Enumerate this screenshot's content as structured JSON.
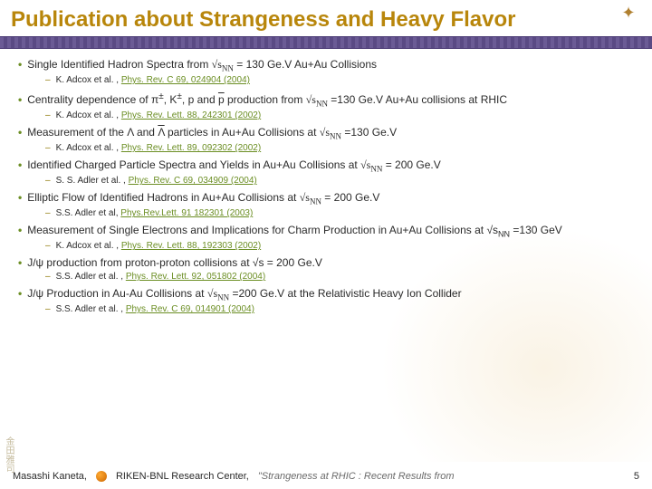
{
  "title": "Publication about Strangeness and Heavy Flavor",
  "pubs": [
    {
      "title_html": "Single Identified Hadron Spectra from <span class='sqrt'>√s<span class='sub'>NN</span></span> = 130 Ge.V Au+Au Collisions",
      "author": "K. Adcox et al. , ",
      "ref": "Phys. Rev. C 69, 024904 (2004)"
    },
    {
      "title_html": "Centrality dependence of π<sup>±</sup>, K<sup>±</sup>, p and <span class='overline'>p</span> production from <span class='sqrt'>√s<span class='sub'>NN</span></span> =130 Ge.V Au+Au collisions at RHIC",
      "author": "K. Adcox et al. , ",
      "ref": "Phys. Rev. Lett. 88, 242301 (2002)"
    },
    {
      "title_html": "Measurement of the Λ and <span class='overline'>Λ</span> particles in Au+Au Collisions at <span class='sqrt'>√s<span class='sub'>NN</span></span> =130 Ge.V",
      "author": "K. Adcox et al. , ",
      "ref": "Phys. Rev. Lett. 89, 092302 (2002)"
    },
    {
      "title_html": "Identified Charged Particle Spectra and Yields in Au+Au Collisions at <span class='sqrt'>√s<span class='sub'>NN</span></span> = 200 Ge.V",
      "author": "S. S. Adler et al. , ",
      "ref": "Phys. Rev. C 69, 034909 (2004)"
    },
    {
      "title_html": "Elliptic Flow of Identified Hadrons in Au+Au Collisions at <span class='sqrt'>√s<span class='sub'>NN</span></span> = 200 Ge.V",
      "author": "S.S. Adler et al, ",
      "ref": "Phys.Rev.Lett. 91 182301 (2003)"
    },
    {
      "title_html": "Measurement of Single Electrons and Implications for Charm Production in Au+Au Collisions at √s<span class='sub'>NN</span> =130 GeV",
      "author": "K. Adcox et al. , ",
      "ref": "Phys. Rev. Lett. 88, 192303 (2002)"
    },
    {
      "title_html": "J/ψ production from proton-proton collisions at √s = 200 Ge.V",
      "author": "S.S. Adler et al. , ",
      "ref": "Phys. Rev. Lett. 92, 051802 (2004)"
    },
    {
      "title_html": "J/ψ Production in Au-Au Collisions at <span class='sqrt'>√s<span class='sub'>NN</span></span> =200 Ge.V at the Relativistic Heavy Ion Collider",
      "author": "S.S. Adler et al. , ",
      "ref": "Phys. Rev. C 69, 014901 (2004)"
    }
  ],
  "footer": {
    "name": "Masashi Kaneta,",
    "inst": "RIKEN-BNL Research Center,",
    "talk": "\"Strangeness at RHIC : Recent Results from",
    "page": "5"
  },
  "kanji": "金田雅司"
}
